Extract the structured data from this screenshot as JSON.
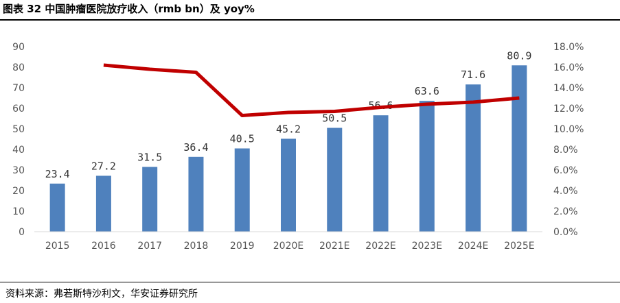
{
  "title": "图表 32 中国肿瘤医院放疗收入（rmb bn）及 yoy%",
  "source": "资料来源：弗若斯特沙利文，华安证券研究所",
  "chart_data": {
    "type": "bar",
    "categories": [
      "2015",
      "2016",
      "2017",
      "2018",
      "2019",
      "2020E",
      "2021E",
      "2022E",
      "2023E",
      "2024E",
      "2025E"
    ],
    "series": [
      {
        "type": "bar",
        "axis": "left",
        "color": "#4f81bd",
        "values": [
          23.4,
          27.2,
          31.5,
          36.4,
          40.5,
          45.2,
          50.5,
          56.6,
          63.6,
          71.6,
          80.9
        ],
        "labels": [
          "23.4",
          "27.2",
          "31.5",
          "36.4",
          "40.5",
          "45.2",
          "50.5",
          "56.6",
          "63.6",
          "71.6",
          "80.9"
        ]
      },
      {
        "type": "line",
        "axis": "right",
        "color": "#c00000",
        "values": [
          null,
          16.2,
          15.8,
          15.5,
          11.3,
          11.6,
          11.7,
          12.1,
          12.4,
          12.6,
          13.0
        ]
      }
    ],
    "ylim_left": [
      0,
      90
    ],
    "yticks_left": [
      "0",
      "10",
      "20",
      "30",
      "40",
      "50",
      "60",
      "70",
      "80",
      "90"
    ],
    "ylim_right": [
      0,
      18
    ],
    "yticks_right": [
      "0.0%",
      "2.0%",
      "4.0%",
      "6.0%",
      "8.0%",
      "10.0%",
      "12.0%",
      "14.0%",
      "16.0%",
      "18.0%"
    ],
    "grid": false,
    "legend": "none"
  }
}
